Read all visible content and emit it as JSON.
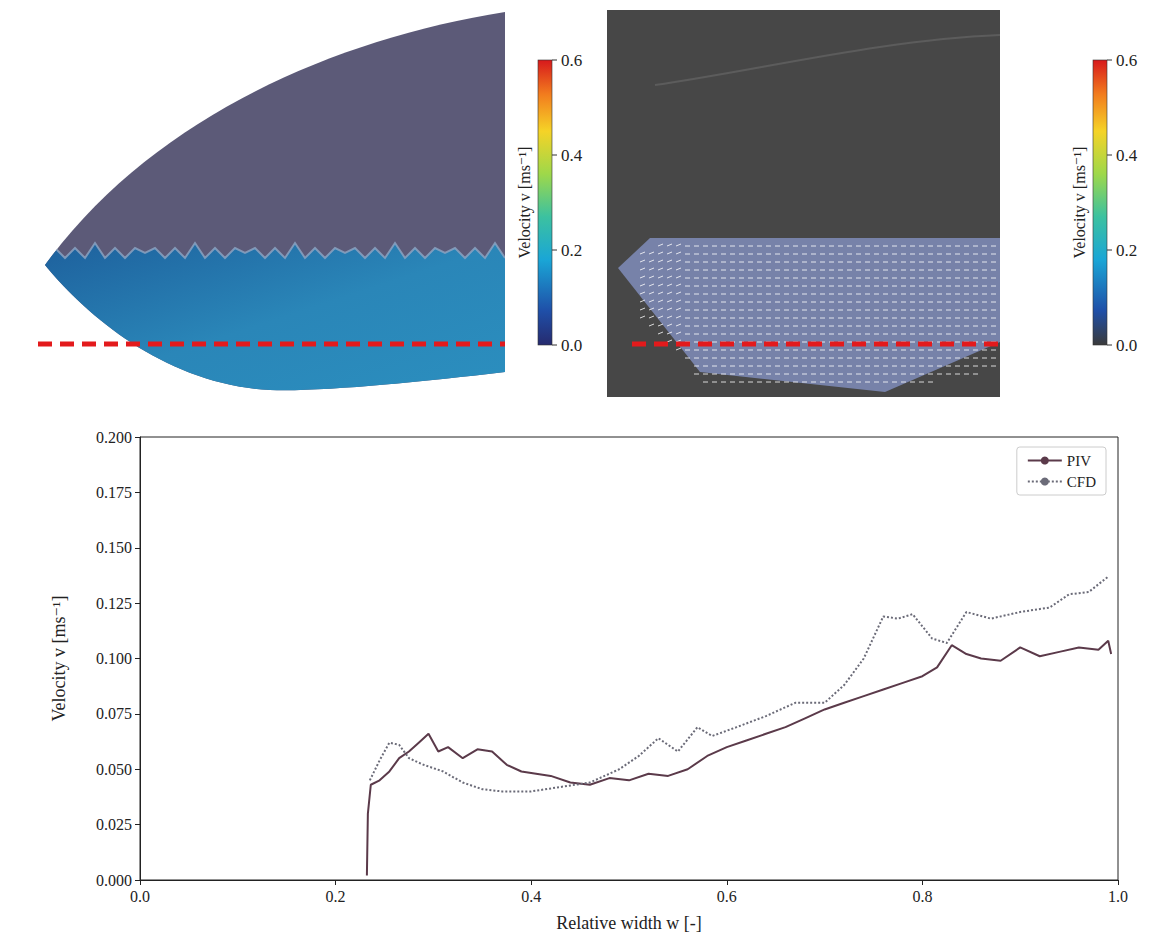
{
  "chart_data": [
    {
      "type": "field_image",
      "colorbar": {
        "label": "Velocity v [ms⁻¹]",
        "range": [
          0,
          0.6
        ],
        "ticks": [
          {
            "value": 0,
            "label": "0.0"
          },
          0.2,
          0.4,
          0.6
        ]
      }
    },
    {
      "type": "field_image",
      "colorbar": {
        "label": "Velocity v [ms⁻¹]",
        "range": [
          0,
          0.6
        ],
        "ticks": [
          {
            "value": 0,
            "label": "0.0"
          },
          0.2,
          0.4,
          0.6
        ]
      }
    },
    {
      "type": "line",
      "x_label": "Relative width w [-]",
      "y_label": "Velocity v [ms⁻¹]",
      "xlim": [
        0,
        1
      ],
      "xticks": [
        {
          "value": 0,
          "label": "0.0"
        },
        0.2,
        0.4,
        0.6,
        0.8,
        {
          "value": 1,
          "label": "1.0"
        }
      ],
      "ylim": [
        0,
        0.2
      ],
      "yticks": [
        {
          "value": 0,
          "label": "0.000"
        },
        0.025,
        {
          "value": 0.05,
          "label": "0.050"
        },
        0.075,
        {
          "value": 0.1,
          "label": "0.100"
        },
        0.125,
        {
          "value": 0.15,
          "label": "0.150"
        },
        0.175,
        {
          "value": 0.2,
          "label": "0.200"
        }
      ],
      "grid": false,
      "legend": "upper right",
      "series": [
        {
          "name": "PIV",
          "color": "#5b3a4a",
          "line_style": "solid",
          "x": [
            0.232,
            0.233,
            0.236,
            0.245,
            0.255,
            0.265,
            0.275,
            0.285,
            0.295,
            0.305,
            0.315,
            0.33,
            0.345,
            0.36,
            0.375,
            0.39,
            0.405,
            0.42,
            0.44,
            0.46,
            0.48,
            0.5,
            0.52,
            0.54,
            0.56,
            0.58,
            0.6,
            0.62,
            0.64,
            0.66,
            0.68,
            0.7,
            0.72,
            0.74,
            0.76,
            0.78,
            0.8,
            0.815,
            0.83,
            0.845,
            0.86,
            0.88,
            0.9,
            0.92,
            0.94,
            0.96,
            0.98,
            0.99,
            0.993
          ],
          "values": [
            0.002,
            0.03,
            0.043,
            0.045,
            0.049,
            0.055,
            0.058,
            0.062,
            0.066,
            0.058,
            0.06,
            0.055,
            0.059,
            0.058,
            0.052,
            0.049,
            0.048,
            0.047,
            0.044,
            0.043,
            0.046,
            0.045,
            0.048,
            0.047,
            0.05,
            0.056,
            0.06,
            0.063,
            0.066,
            0.069,
            0.073,
            0.077,
            0.08,
            0.083,
            0.086,
            0.089,
            0.092,
            0.096,
            0.106,
            0.102,
            0.1,
            0.099,
            0.105,
            0.101,
            0.103,
            0.105,
            0.104,
            0.108,
            0.102
          ]
        },
        {
          "name": "CFD",
          "color": "#6b6b78",
          "line_style": "dotted",
          "x": [
            0.235,
            0.245,
            0.255,
            0.265,
            0.275,
            0.29,
            0.31,
            0.33,
            0.35,
            0.37,
            0.4,
            0.43,
            0.46,
            0.49,
            0.51,
            0.53,
            0.55,
            0.57,
            0.585,
            0.61,
            0.64,
            0.67,
            0.7,
            0.72,
            0.74,
            0.76,
            0.775,
            0.79,
            0.81,
            0.825,
            0.845,
            0.87,
            0.9,
            0.93,
            0.95,
            0.97,
            0.99
          ],
          "values": [
            0.045,
            0.054,
            0.062,
            0.061,
            0.055,
            0.052,
            0.049,
            0.044,
            0.041,
            0.04,
            0.04,
            0.042,
            0.044,
            0.05,
            0.056,
            0.064,
            0.058,
            0.069,
            0.065,
            0.069,
            0.074,
            0.08,
            0.08,
            0.088,
            0.1,
            0.119,
            0.118,
            0.12,
            0.109,
            0.107,
            0.121,
            0.118,
            0.121,
            0.123,
            0.129,
            0.13,
            0.137
          ]
        }
      ]
    }
  ]
}
